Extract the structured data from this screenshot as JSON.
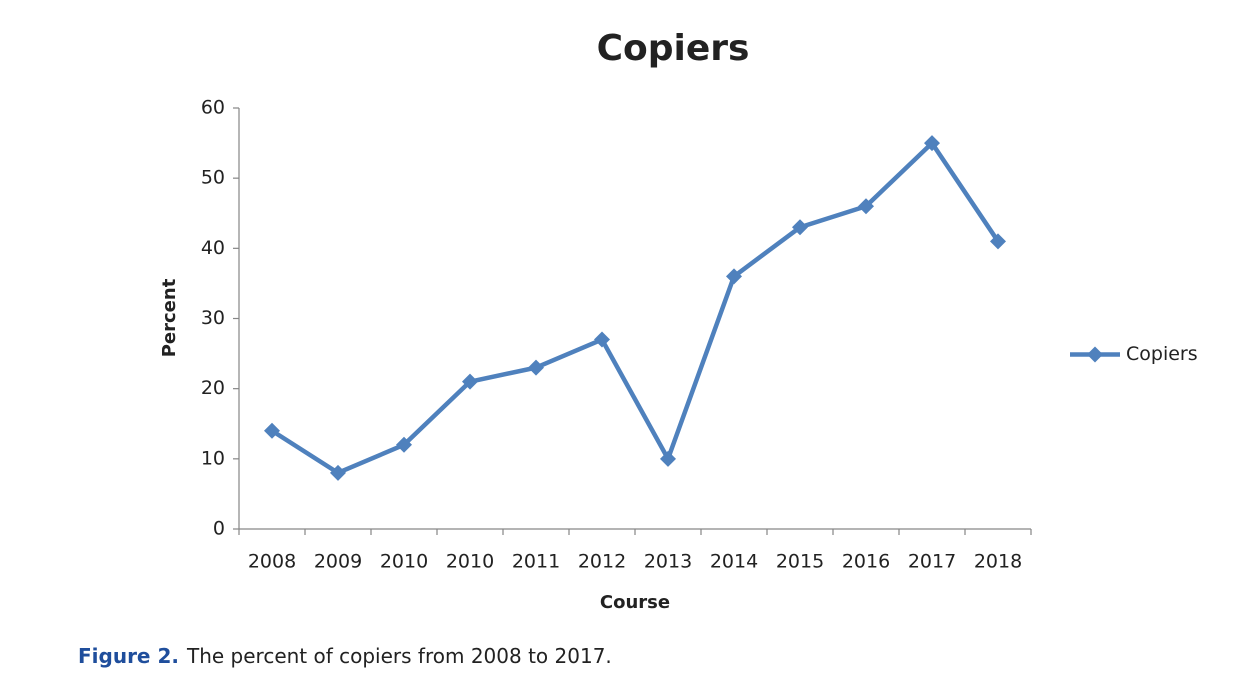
{
  "chart_data": {
    "type": "line",
    "title": "Copiers",
    "x_label": "Course",
    "y_label": "Percent",
    "categories": [
      "2008",
      "2009",
      "2010",
      "2010",
      "2011",
      "2012",
      "2013",
      "2014",
      "2015",
      "2016",
      "2017",
      "2018"
    ],
    "series": [
      {
        "name": "Copiers",
        "color": "#4f81bd",
        "values": [
          14,
          8,
          12,
          21,
          23,
          27,
          10,
          36,
          43,
          46,
          55,
          41
        ]
      }
    ],
    "ylim": [
      0,
      60
    ],
    "yticks": [
      0,
      10,
      20,
      30,
      40,
      50,
      60
    ],
    "grid": false,
    "legend": "right"
  },
  "caption": {
    "label": "Figure 2.",
    "text": "The percent of copiers from 2008 to 2017."
  }
}
